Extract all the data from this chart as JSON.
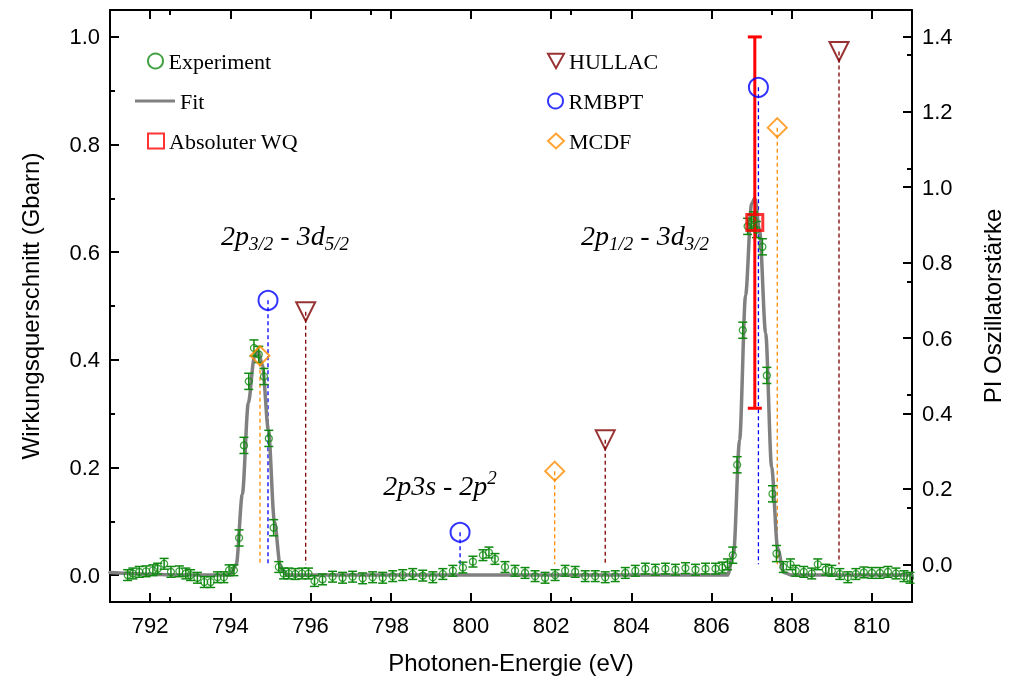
{
  "chart_data": {
    "type": "scatter",
    "xlabel": "Photonen-Energie (eV)",
    "ylabel": "Wirkungsquerschnitt (Gbarn)",
    "y2label": "PI Oszillatorstärke",
    "xlim": [
      791,
      811
    ],
    "xticks": [
      792,
      794,
      796,
      798,
      800,
      802,
      804,
      806,
      808,
      810
    ],
    "ylim": [
      -0.05,
      1.05
    ],
    "yticks": [
      {
        "value": 0,
        "label": "0.0"
      },
      {
        "value": 0.2,
        "label": "0.2"
      },
      {
        "value": 0.4,
        "label": "0.4"
      },
      {
        "value": 0.6,
        "label": "0.6"
      },
      {
        "value": 0.8,
        "label": "0.8"
      },
      {
        "value": 1,
        "label": "1.0"
      }
    ],
    "y2lim": [
      -0.1,
      1.47
    ],
    "y2ticks": [
      {
        "value": 0,
        "label": "0.0"
      },
      {
        "value": 0.2,
        "label": "0.2"
      },
      {
        "value": 0.4,
        "label": "0.4"
      },
      {
        "value": 0.6,
        "label": "0.6"
      },
      {
        "value": 0.8,
        "label": "0.8"
      },
      {
        "value": 1,
        "label": "1.0"
      },
      {
        "value": 1.2,
        "label": "1.2"
      },
      {
        "value": 1.4,
        "label": "1.4"
      }
    ],
    "legend": "top left",
    "annotations": [
      "2p$_{3/2}$ - 3d$_{5/2}$",
      "2p3s - 2p$^{2}$",
      "2p$_{1/2}$ - 3d$_{3/2}$"
    ],
    "series": [
      {
        "name": "Experiment",
        "marker": "circle",
        "color": "#108a10",
        "x": [
          791.44,
          791.57,
          791.73,
          791.9,
          792.07,
          792.19,
          792.35,
          792.52,
          792.73,
          792.89,
          793.01,
          793.18,
          793.35,
          793.51,
          793.68,
          793.84,
          793.97,
          794.09,
          794.22,
          794.34,
          794.46,
          794.59,
          794.71,
          794.84,
          794.96,
          795.08,
          795.21,
          795.33,
          795.46,
          795.62,
          795.79,
          795.95,
          796.1,
          796.3,
          796.55,
          796.8,
          797.05,
          797.3,
          797.55,
          797.8,
          798.05,
          798.3,
          798.55,
          798.8,
          799.05,
          799.3,
          799.55,
          799.8,
          800.05,
          800.3,
          800.45,
          800.6,
          800.85,
          801.1,
          801.35,
          801.6,
          801.85,
          802.1,
          802.35,
          802.6,
          802.85,
          803.1,
          803.35,
          803.6,
          803.85,
          804.1,
          804.35,
          804.6,
          804.85,
          805.1,
          805.35,
          805.6,
          805.85,
          806.1,
          806.27,
          806.4,
          806.53,
          806.64,
          806.78,
          806.9,
          807.0,
          807.05,
          807.12,
          807.27,
          807.38,
          807.52,
          807.62,
          807.79,
          807.97,
          808.1,
          808.3,
          808.5,
          808.65,
          808.85,
          809.0,
          809.2,
          809.4,
          809.6,
          809.8,
          810.0,
          810.2,
          810.4,
          810.6,
          810.8,
          810.95
        ],
        "values": [
          0.0,
          0.003,
          0.006,
          0.007,
          0.009,
          0.012,
          0.021,
          0.006,
          0.007,
          0.003,
          0.0,
          -0.005,
          -0.013,
          -0.013,
          -0.004,
          -0.004,
          0.009,
          0.009,
          0.069,
          0.241,
          0.36,
          0.422,
          0.41,
          0.369,
          0.254,
          0.088,
          0.015,
          0.003,
          0.003,
          0.002,
          0.003,
          0.003,
          -0.011,
          -0.008,
          -0.003,
          -0.005,
          -0.003,
          -0.006,
          -0.004,
          -0.005,
          -0.002,
          0.0,
          0.002,
          -0.001,
          -0.004,
          0.002,
          0.008,
          0.014,
          0.025,
          0.037,
          0.042,
          0.03,
          0.015,
          0.008,
          0.004,
          -0.002,
          -0.005,
          0.0,
          0.008,
          0.006,
          -0.002,
          -0.002,
          -0.004,
          -0.002,
          0.004,
          0.008,
          0.012,
          0.01,
          0.012,
          0.01,
          0.013,
          0.01,
          0.012,
          0.012,
          0.014,
          0.02,
          0.037,
          0.205,
          0.455,
          0.648,
          0.655,
          0.66,
          0.642,
          0.61,
          0.371,
          0.151,
          0.04,
          0.015,
          0.02,
          0.008,
          0.006,
          0.003,
          0.02,
          0.01,
          0.008,
          0.002,
          -0.004,
          0.002,
          0.005,
          0.004,
          0.004,
          0.006,
          0.003,
          -0.002,
          -0.005
        ],
        "errors": [
          0.01,
          0.01,
          0.01,
          0.01,
          0.01,
          0.01,
          0.01,
          0.01,
          0.01,
          0.01,
          0.01,
          0.01,
          0.01,
          0.01,
          0.01,
          0.01,
          0.01,
          0.01,
          0.015,
          0.015,
          0.015,
          0.015,
          0.015,
          0.015,
          0.015,
          0.015,
          0.01,
          0.01,
          0.01,
          0.01,
          0.01,
          0.01,
          0.01,
          0.01,
          0.01,
          0.01,
          0.01,
          0.01,
          0.01,
          0.01,
          0.01,
          0.01,
          0.01,
          0.01,
          0.01,
          0.01,
          0.01,
          0.01,
          0.01,
          0.01,
          0.01,
          0.01,
          0.01,
          0.01,
          0.01,
          0.01,
          0.01,
          0.01,
          0.01,
          0.01,
          0.01,
          0.01,
          0.01,
          0.01,
          0.01,
          0.01,
          0.01,
          0.01,
          0.01,
          0.01,
          0.01,
          0.01,
          0.01,
          0.01,
          0.01,
          0.01,
          0.015,
          0.015,
          0.015,
          0.015,
          0.015,
          0.015,
          0.015,
          0.015,
          0.015,
          0.015,
          0.015,
          0.01,
          0.01,
          0.01,
          0.01,
          0.01,
          0.01,
          0.01,
          0.01,
          0.01,
          0.01,
          0.01,
          0.01,
          0.01,
          0.01,
          0.01,
          0.01,
          0.01,
          0.01
        ]
      },
      {
        "name": "Fit",
        "type": "line",
        "marker": "none",
        "color": "#808080",
        "x": [
          791.0,
          793.0,
          794.0,
          794.15,
          794.3,
          794.45,
          794.6,
          794.7,
          794.8,
          794.95,
          795.1,
          795.25,
          795.4,
          800.0,
          806.4,
          806.55,
          806.7,
          806.85,
          807.0,
          807.08,
          807.2,
          807.35,
          807.5,
          807.65,
          807.8,
          808.0,
          811.0
        ],
        "values": [
          0.005,
          0.0,
          0.0,
          0.02,
          0.15,
          0.32,
          0.405,
          0.415,
          0.39,
          0.27,
          0.1,
          0.015,
          0.0,
          0.0,
          0.0,
          0.04,
          0.25,
          0.52,
          0.69,
          0.7,
          0.64,
          0.45,
          0.2,
          0.05,
          0.005,
          0.0,
          0.0
        ]
      },
      {
        "name": "Absoluter WQ",
        "type": "scatter",
        "marker": "square",
        "color": "#ff0000",
        "x": [
          807.08
        ],
        "values": [
          0.655
        ],
        "errors": [
          [
            0.31,
            1.0
          ]
        ]
      },
      {
        "name": "HULLAC",
        "type": "lollipop",
        "axis": "y2",
        "marker": "triangle",
        "line_style": "dashed",
        "color": "#800000",
        "x": [
          795.88,
          803.35,
          809.18
        ],
        "values": [
          0.67,
          0.33,
          1.36
        ]
      },
      {
        "name": "RMBPT",
        "type": "lollipop",
        "axis": "y2",
        "marker": "circle",
        "line_style": "dashed",
        "color": "#0000ff",
        "x": [
          794.94,
          799.73,
          807.17
        ],
        "values": [
          0.7,
          0.085,
          1.265
        ]
      },
      {
        "name": "MCDF",
        "type": "lollipop",
        "axis": "y2",
        "marker": "diamond",
        "line_style": "dashed",
        "color": "#ff8c00",
        "x": [
          794.74,
          802.09,
          807.64
        ],
        "values": [
          0.553,
          0.247,
          1.158
        ]
      }
    ]
  }
}
